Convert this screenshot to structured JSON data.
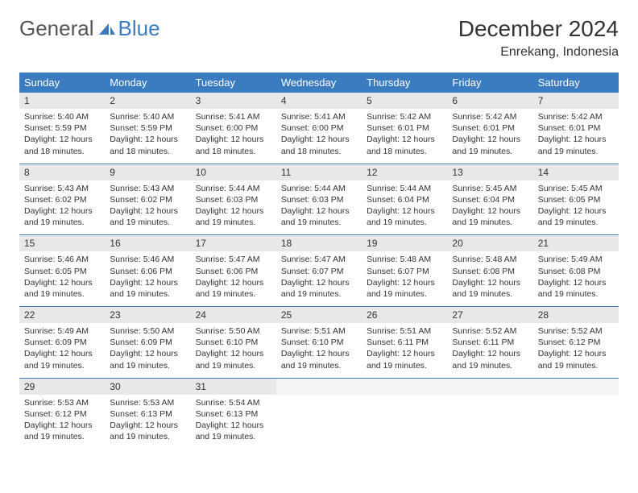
{
  "logo": {
    "text_gray": "General",
    "text_blue": "Blue"
  },
  "title": "December 2024",
  "location": "Enrekang, Indonesia",
  "colors": {
    "header_bg": "#3b7bbf",
    "header_text": "#ffffff",
    "daynum_bg": "#e8e8e8",
    "separator": "#3b7bbf",
    "logo_gray": "#555555",
    "logo_blue": "#3b7bbf"
  },
  "day_headers": [
    "Sunday",
    "Monday",
    "Tuesday",
    "Wednesday",
    "Thursday",
    "Friday",
    "Saturday"
  ],
  "weeks": [
    [
      {
        "num": "1",
        "sunrise": "5:40 AM",
        "sunset": "5:59 PM",
        "daylight": "12 hours and 18 minutes."
      },
      {
        "num": "2",
        "sunrise": "5:40 AM",
        "sunset": "5:59 PM",
        "daylight": "12 hours and 18 minutes."
      },
      {
        "num": "3",
        "sunrise": "5:41 AM",
        "sunset": "6:00 PM",
        "daylight": "12 hours and 18 minutes."
      },
      {
        "num": "4",
        "sunrise": "5:41 AM",
        "sunset": "6:00 PM",
        "daylight": "12 hours and 18 minutes."
      },
      {
        "num": "5",
        "sunrise": "5:42 AM",
        "sunset": "6:01 PM",
        "daylight": "12 hours and 18 minutes."
      },
      {
        "num": "6",
        "sunrise": "5:42 AM",
        "sunset": "6:01 PM",
        "daylight": "12 hours and 19 minutes."
      },
      {
        "num": "7",
        "sunrise": "5:42 AM",
        "sunset": "6:01 PM",
        "daylight": "12 hours and 19 minutes."
      }
    ],
    [
      {
        "num": "8",
        "sunrise": "5:43 AM",
        "sunset": "6:02 PM",
        "daylight": "12 hours and 19 minutes."
      },
      {
        "num": "9",
        "sunrise": "5:43 AM",
        "sunset": "6:02 PM",
        "daylight": "12 hours and 19 minutes."
      },
      {
        "num": "10",
        "sunrise": "5:44 AM",
        "sunset": "6:03 PM",
        "daylight": "12 hours and 19 minutes."
      },
      {
        "num": "11",
        "sunrise": "5:44 AM",
        "sunset": "6:03 PM",
        "daylight": "12 hours and 19 minutes."
      },
      {
        "num": "12",
        "sunrise": "5:44 AM",
        "sunset": "6:04 PM",
        "daylight": "12 hours and 19 minutes."
      },
      {
        "num": "13",
        "sunrise": "5:45 AM",
        "sunset": "6:04 PM",
        "daylight": "12 hours and 19 minutes."
      },
      {
        "num": "14",
        "sunrise": "5:45 AM",
        "sunset": "6:05 PM",
        "daylight": "12 hours and 19 minutes."
      }
    ],
    [
      {
        "num": "15",
        "sunrise": "5:46 AM",
        "sunset": "6:05 PM",
        "daylight": "12 hours and 19 minutes."
      },
      {
        "num": "16",
        "sunrise": "5:46 AM",
        "sunset": "6:06 PM",
        "daylight": "12 hours and 19 minutes."
      },
      {
        "num": "17",
        "sunrise": "5:47 AM",
        "sunset": "6:06 PM",
        "daylight": "12 hours and 19 minutes."
      },
      {
        "num": "18",
        "sunrise": "5:47 AM",
        "sunset": "6:07 PM",
        "daylight": "12 hours and 19 minutes."
      },
      {
        "num": "19",
        "sunrise": "5:48 AM",
        "sunset": "6:07 PM",
        "daylight": "12 hours and 19 minutes."
      },
      {
        "num": "20",
        "sunrise": "5:48 AM",
        "sunset": "6:08 PM",
        "daylight": "12 hours and 19 minutes."
      },
      {
        "num": "21",
        "sunrise": "5:49 AM",
        "sunset": "6:08 PM",
        "daylight": "12 hours and 19 minutes."
      }
    ],
    [
      {
        "num": "22",
        "sunrise": "5:49 AM",
        "sunset": "6:09 PM",
        "daylight": "12 hours and 19 minutes."
      },
      {
        "num": "23",
        "sunrise": "5:50 AM",
        "sunset": "6:09 PM",
        "daylight": "12 hours and 19 minutes."
      },
      {
        "num": "24",
        "sunrise": "5:50 AM",
        "sunset": "6:10 PM",
        "daylight": "12 hours and 19 minutes."
      },
      {
        "num": "25",
        "sunrise": "5:51 AM",
        "sunset": "6:10 PM",
        "daylight": "12 hours and 19 minutes."
      },
      {
        "num": "26",
        "sunrise": "5:51 AM",
        "sunset": "6:11 PM",
        "daylight": "12 hours and 19 minutes."
      },
      {
        "num": "27",
        "sunrise": "5:52 AM",
        "sunset": "6:11 PM",
        "daylight": "12 hours and 19 minutes."
      },
      {
        "num": "28",
        "sunrise": "5:52 AM",
        "sunset": "6:12 PM",
        "daylight": "12 hours and 19 minutes."
      }
    ],
    [
      {
        "num": "29",
        "sunrise": "5:53 AM",
        "sunset": "6:12 PM",
        "daylight": "12 hours and 19 minutes."
      },
      {
        "num": "30",
        "sunrise": "5:53 AM",
        "sunset": "6:13 PM",
        "daylight": "12 hours and 19 minutes."
      },
      {
        "num": "31",
        "sunrise": "5:54 AM",
        "sunset": "6:13 PM",
        "daylight": "12 hours and 19 minutes."
      },
      null,
      null,
      null,
      null
    ]
  ]
}
